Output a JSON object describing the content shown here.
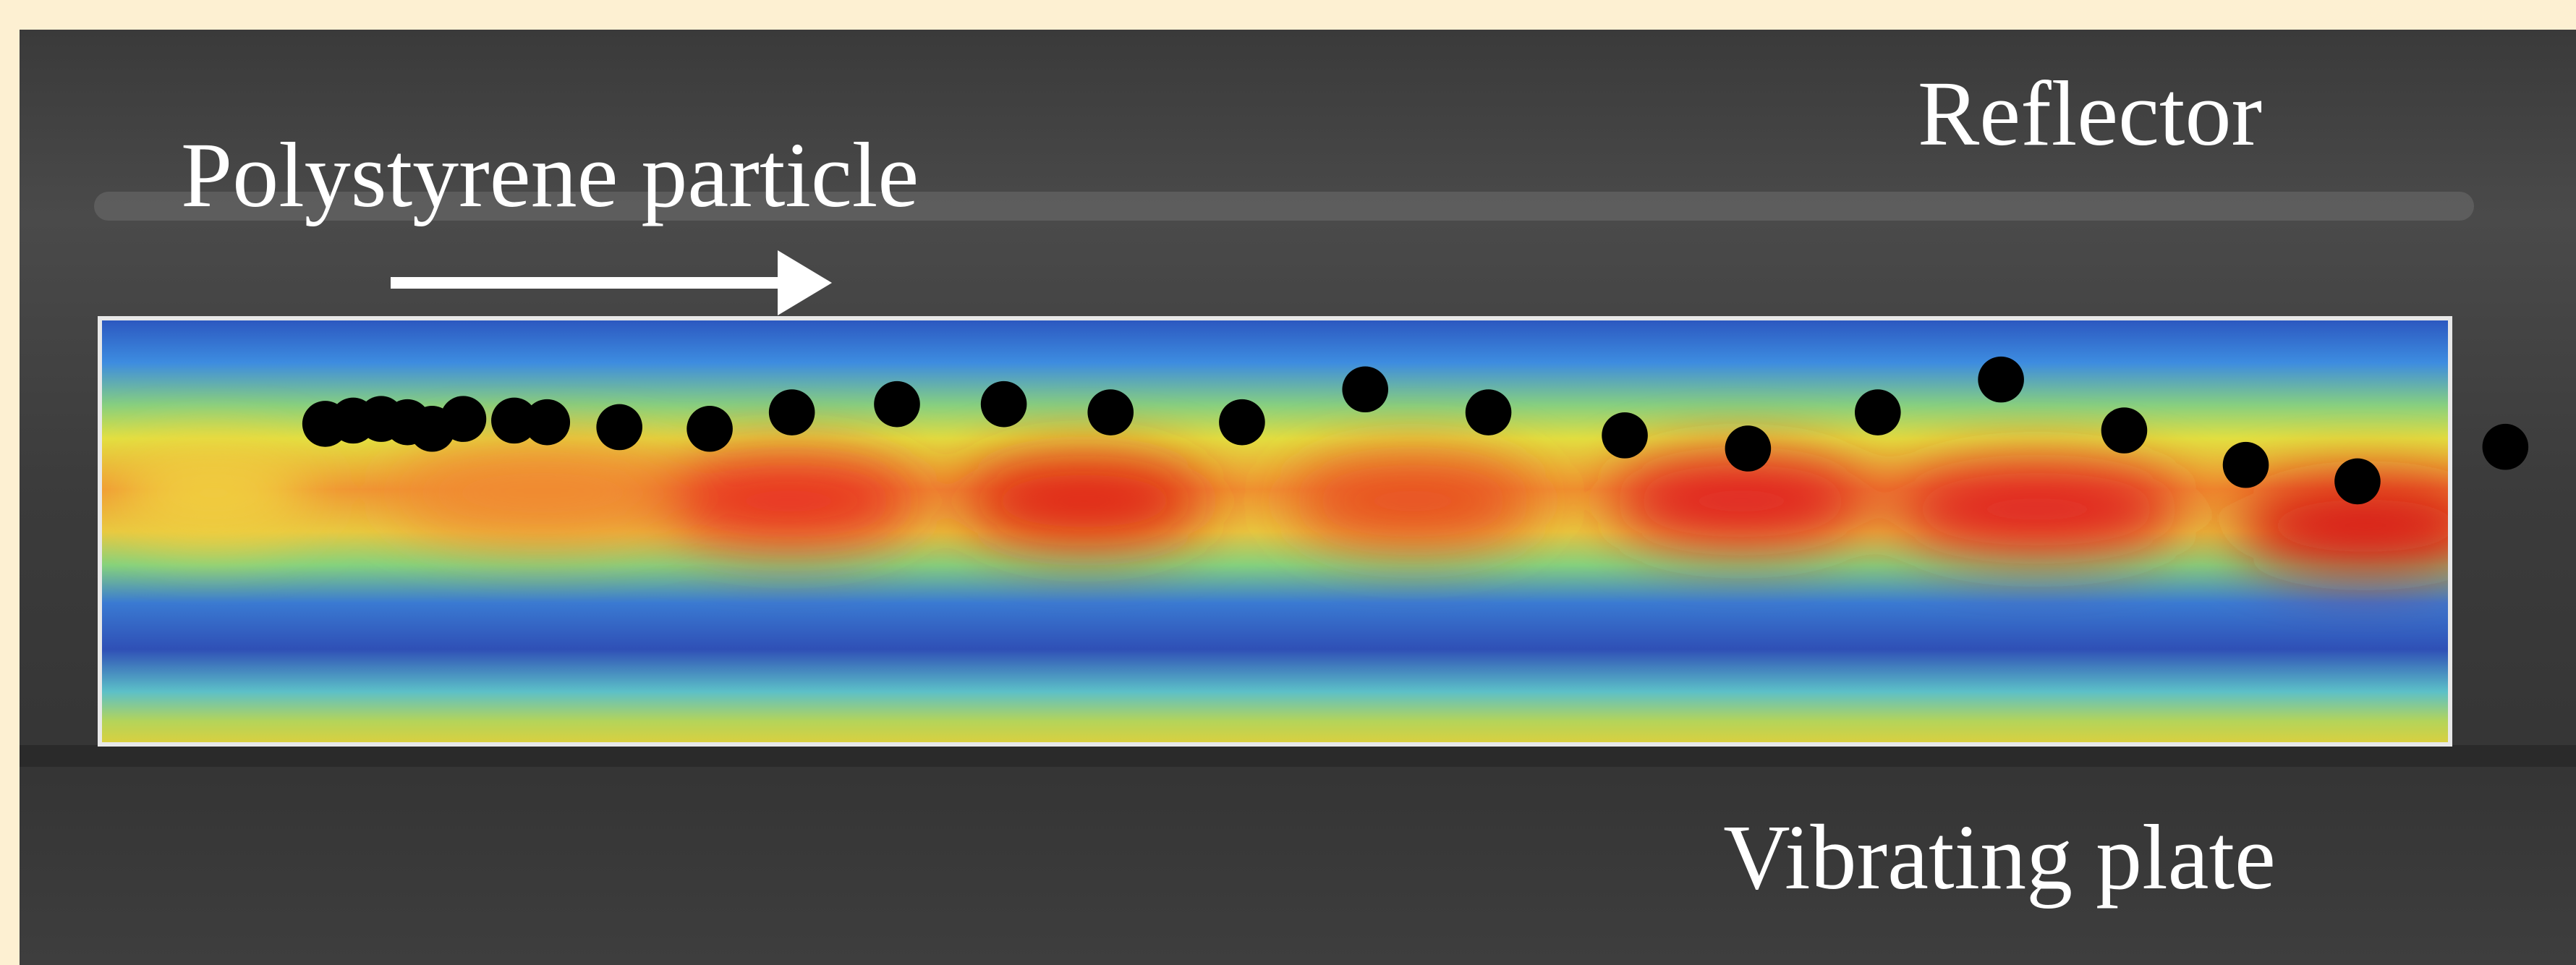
{
  "labels": {
    "reflector": "Reflector",
    "particle": "Polystyrene particle",
    "plate": "Vibrating plate"
  }
}
